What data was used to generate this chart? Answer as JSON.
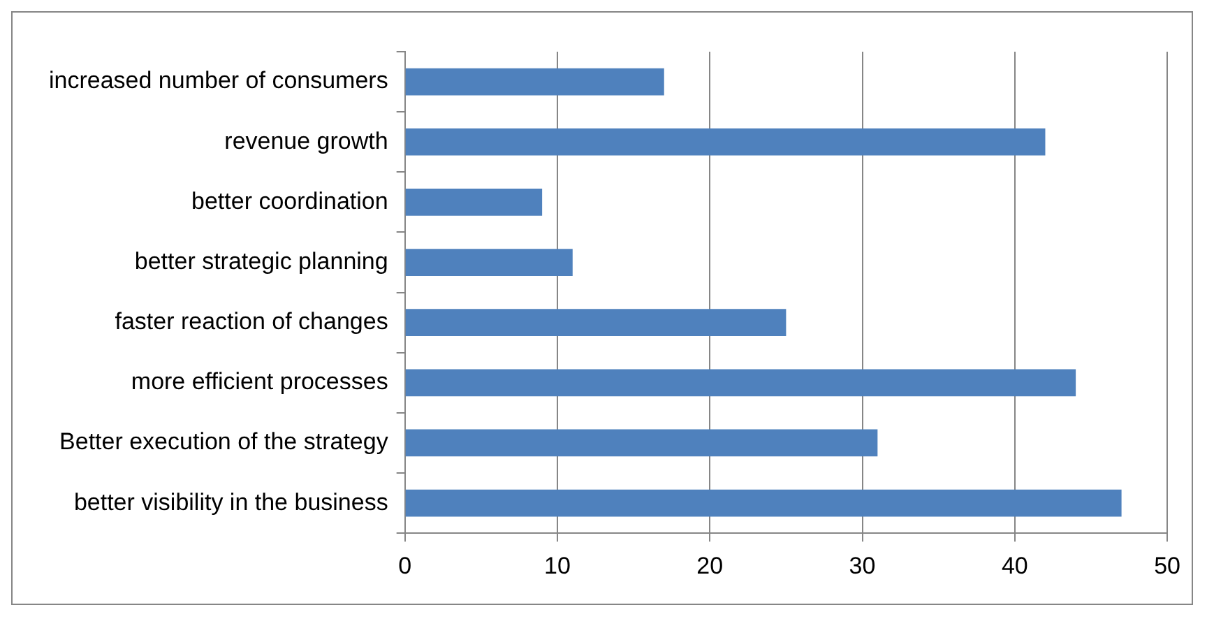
{
  "chart_data": {
    "type": "bar",
    "orientation": "horizontal",
    "categories": [
      "increased number of consumers",
      "revenue growth",
      "better coordination",
      "better strategic planning",
      "faster reaction of changes",
      "more efficient processes",
      "Better execution of the strategy",
      "better visibility in the business"
    ],
    "values": [
      17,
      42,
      9,
      11,
      25,
      44,
      31,
      47
    ],
    "color": "#4f81bd",
    "xlim": [
      0,
      50
    ],
    "xticks": [
      0,
      10,
      20,
      30,
      40,
      50
    ],
    "grid": "x",
    "legend": false
  }
}
